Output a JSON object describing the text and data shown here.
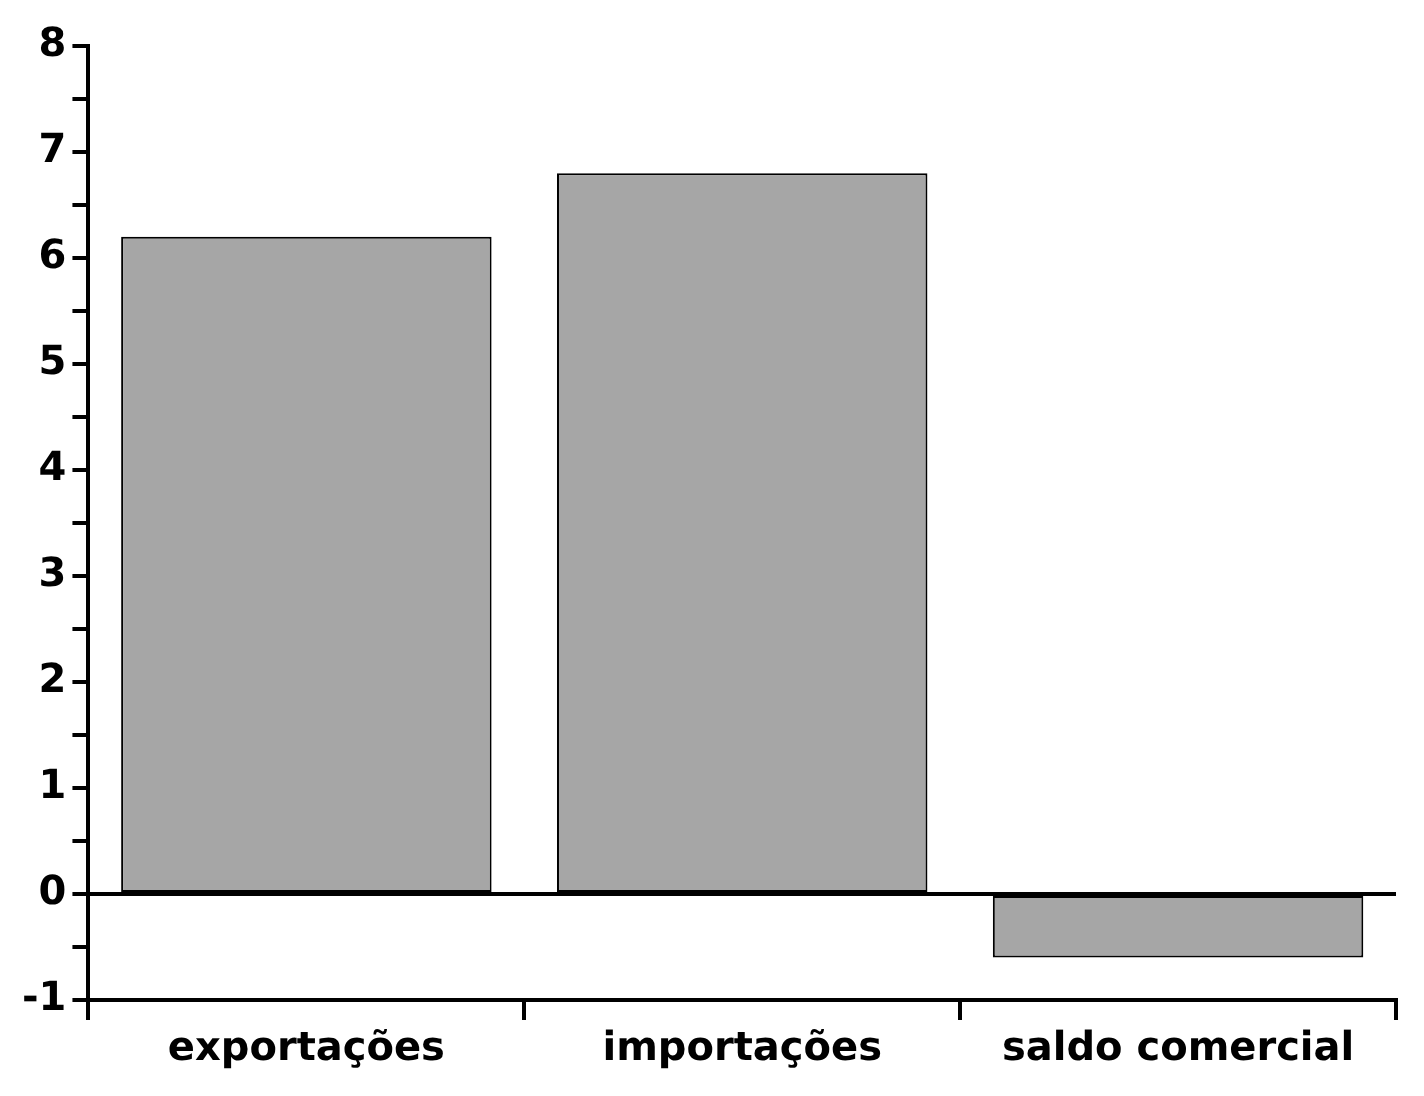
{
  "chart_data": {
    "type": "bar",
    "categories": [
      "exportações",
      "importações",
      "saldo comercial"
    ],
    "values": [
      6.2,
      6.8,
      -0.6
    ],
    "color": "#a6a6a6",
    "ylim": [
      -1,
      8
    ],
    "yticks": [
      -1,
      {
        "value": -0.5,
        "label": null
      },
      0,
      {
        "value": 0.5,
        "label": null
      },
      1,
      {
        "value": 1.5,
        "label": null
      },
      2,
      {
        "value": 2.5,
        "label": null
      },
      3,
      {
        "value": 3.5,
        "label": null
      },
      4,
      {
        "value": 4.5,
        "label": null
      },
      5,
      {
        "value": 5.5,
        "label": null
      },
      6,
      {
        "value": 6.5,
        "label": null
      },
      7,
      {
        "value": 7.5,
        "label": null
      },
      8
    ],
    "ref_lines": [
      {
        "axis": "y",
        "value": 0,
        "color": "#000000"
      }
    ],
    "grid": false,
    "legend": false
  }
}
